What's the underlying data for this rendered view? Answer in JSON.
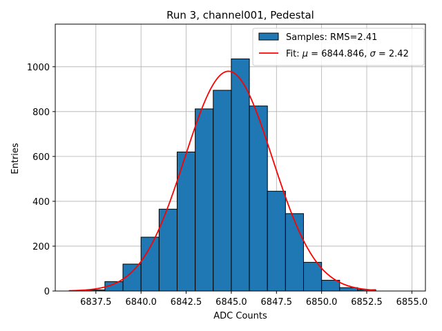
{
  "chart_data": {
    "type": "bar",
    "title": "Run 3, channel001, Pedestal",
    "xlabel": "ADC Counts",
    "ylabel": "Entries",
    "xlim": [
      6835.25,
      6855.75
    ],
    "ylim": [
      0,
      1190
    ],
    "grid": true,
    "x_ticks": [
      6837.5,
      6840.0,
      6842.5,
      6845.0,
      6847.5,
      6850.0,
      6852.5,
      6855.0
    ],
    "x_tick_labels": [
      "6837.5",
      "6840.0",
      "6842.5",
      "6845.0",
      "6847.5",
      "6850.0",
      "6852.5",
      "6855.0"
    ],
    "y_ticks": [
      0,
      200,
      400,
      600,
      800,
      1000
    ],
    "y_tick_labels": [
      "0",
      "200",
      "400",
      "600",
      "800",
      "1000"
    ],
    "bins": [
      {
        "x0": 6837,
        "x1": 6838,
        "value": 5
      },
      {
        "x0": 6838,
        "x1": 6839,
        "value": 42
      },
      {
        "x0": 6839,
        "x1": 6840,
        "value": 120
      },
      {
        "x0": 6840,
        "x1": 6841,
        "value": 240
      },
      {
        "x0": 6841,
        "x1": 6842,
        "value": 365
      },
      {
        "x0": 6842,
        "x1": 6843,
        "value": 620
      },
      {
        "x0": 6843,
        "x1": 6844,
        "value": 812
      },
      {
        "x0": 6844,
        "x1": 6845,
        "value": 895
      },
      {
        "x0": 6845,
        "x1": 6846,
        "value": 1035
      },
      {
        "x0": 6846,
        "x1": 6847,
        "value": 825
      },
      {
        "x0": 6847,
        "x1": 6848,
        "value": 445
      },
      {
        "x0": 6848,
        "x1": 6849,
        "value": 345
      },
      {
        "x0": 6849,
        "x1": 6850,
        "value": 128
      },
      {
        "x0": 6850,
        "x1": 6851,
        "value": 48
      },
      {
        "x0": 6851,
        "x1": 6852,
        "value": 15
      },
      {
        "x0": 6852,
        "x1": 6853,
        "value": 6
      }
    ],
    "fit": {
      "mu": 6844.846,
      "sigma": 2.42,
      "amplitude": 980,
      "x_range": [
        6836,
        6853
      ]
    },
    "legend": {
      "position": "top-right",
      "samples_label": "Samples: RMS=2.41",
      "fit_prefix": "Fit: ",
      "mu_symbol": "μ",
      "mu_text": " = 6844.846, ",
      "sigma_symbol": "σ",
      "sigma_text": " = 2.42"
    },
    "colors": {
      "bar_fill": "#1f77b4",
      "bar_edge": "#000000",
      "fit_line": "#ff0000",
      "grid": "#b0b0b0"
    }
  }
}
